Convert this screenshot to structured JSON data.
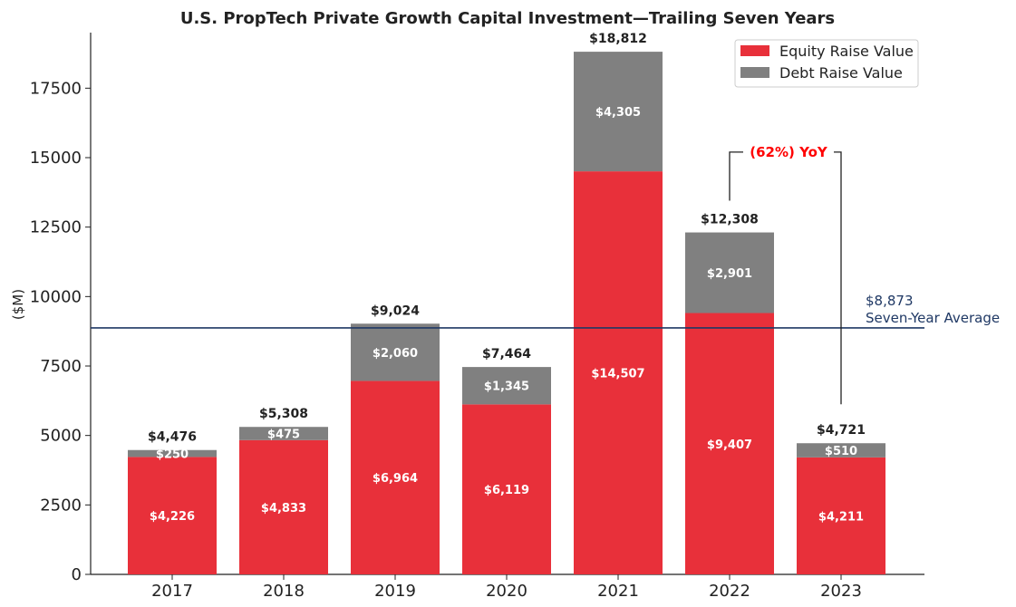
{
  "chart_data": {
    "type": "bar",
    "stacked": true,
    "title": "U.S. PropTech Private Growth Capital Investment—Trailing Seven Years",
    "xlabel": "",
    "ylabel": "($M)",
    "ylim": [
      0,
      19500
    ],
    "yticks": [
      0,
      2500,
      5000,
      7500,
      10000,
      12500,
      15000,
      17500
    ],
    "categories": [
      "2017",
      "2018",
      "2019",
      "2020",
      "2021",
      "2022",
      "2023"
    ],
    "series": [
      {
        "name": "Equity Raise Value",
        "color": "#e8303a",
        "values": [
          4226,
          4833,
          6964,
          6119,
          14507,
          9407,
          4211
        ],
        "labels": [
          "$4,226",
          "$4,833",
          "$6,964",
          "$6,119",
          "$14,507",
          "$9,407",
          "$4,211"
        ]
      },
      {
        "name": "Debt Raise Value",
        "color": "#808080",
        "values": [
          250,
          475,
          2060,
          1345,
          4305,
          2901,
          510
        ],
        "labels": [
          "$250",
          "$475",
          "$2,060",
          "$1,345",
          "$4,305",
          "$2,901",
          "$510"
        ]
      }
    ],
    "totals": [
      4476,
      5308,
      9024,
      7464,
      18812,
      12308,
      4721
    ],
    "total_labels": [
      "$4,476",
      "$5,308",
      "$9,024",
      "$7,464",
      "$18,812",
      "$12,308",
      "$4,721"
    ],
    "average": {
      "value": 8873,
      "label_value": "$8,873",
      "label_text": "Seven-Year Average",
      "color": "#1f3864"
    },
    "annotation": {
      "text": "(62%) YoY",
      "color": "#ff0000",
      "from_category": "2022",
      "to_category": "2023"
    },
    "legend_position": "top-right"
  }
}
